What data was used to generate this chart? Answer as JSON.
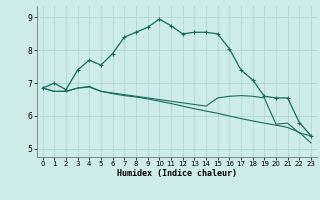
{
  "xlabel": "Humidex (Indice chaleur)",
  "bg_color": "#ceecea",
  "grid_color": "#b0d8d4",
  "line_color": "#1a6b5e",
  "x_ticks": [
    0,
    1,
    2,
    3,
    4,
    5,
    6,
    7,
    8,
    9,
    10,
    11,
    12,
    13,
    14,
    15,
    16,
    17,
    18,
    19,
    20,
    21,
    22,
    23
  ],
  "y_ticks": [
    5,
    6,
    7,
    8,
    9
  ],
  "xlim": [
    -0.5,
    23.5
  ],
  "ylim": [
    4.75,
    9.35
  ],
  "line1_x": [
    0,
    1,
    2,
    3,
    4,
    5,
    6,
    7,
    8,
    9,
    10,
    11,
    12,
    13,
    14,
    15,
    16,
    17,
    18,
    19,
    20,
    21,
    22,
    23
  ],
  "line1_y": [
    6.85,
    7.0,
    6.8,
    7.4,
    7.7,
    7.55,
    7.9,
    8.4,
    8.55,
    8.7,
    8.95,
    8.75,
    8.5,
    8.55,
    8.55,
    8.5,
    8.05,
    7.4,
    7.1,
    6.6,
    6.55,
    6.55,
    5.8,
    5.4
  ],
  "line2_x": [
    0,
    1,
    2,
    3,
    4,
    5,
    6,
    7,
    8,
    9,
    10,
    11,
    12,
    13,
    14,
    15,
    16,
    17,
    18,
    19,
    20,
    21,
    22,
    23
  ],
  "line2_y": [
    6.85,
    6.75,
    6.75,
    6.85,
    6.9,
    6.75,
    6.7,
    6.65,
    6.6,
    6.55,
    6.5,
    6.45,
    6.4,
    6.35,
    6.3,
    6.55,
    6.6,
    6.62,
    6.6,
    6.55,
    5.75,
    5.78,
    5.48,
    5.4
  ],
  "line3_x": [
    0,
    1,
    2,
    3,
    4,
    5,
    6,
    7,
    8,
    9,
    10,
    11,
    12,
    13,
    14,
    15,
    16,
    17,
    18,
    19,
    20,
    21,
    22,
    23
  ],
  "line3_y": [
    6.85,
    6.75,
    6.75,
    6.85,
    6.88,
    6.75,
    6.68,
    6.62,
    6.58,
    6.52,
    6.45,
    6.38,
    6.3,
    6.22,
    6.15,
    6.08,
    6.0,
    5.92,
    5.85,
    5.78,
    5.72,
    5.65,
    5.5,
    5.18
  ]
}
